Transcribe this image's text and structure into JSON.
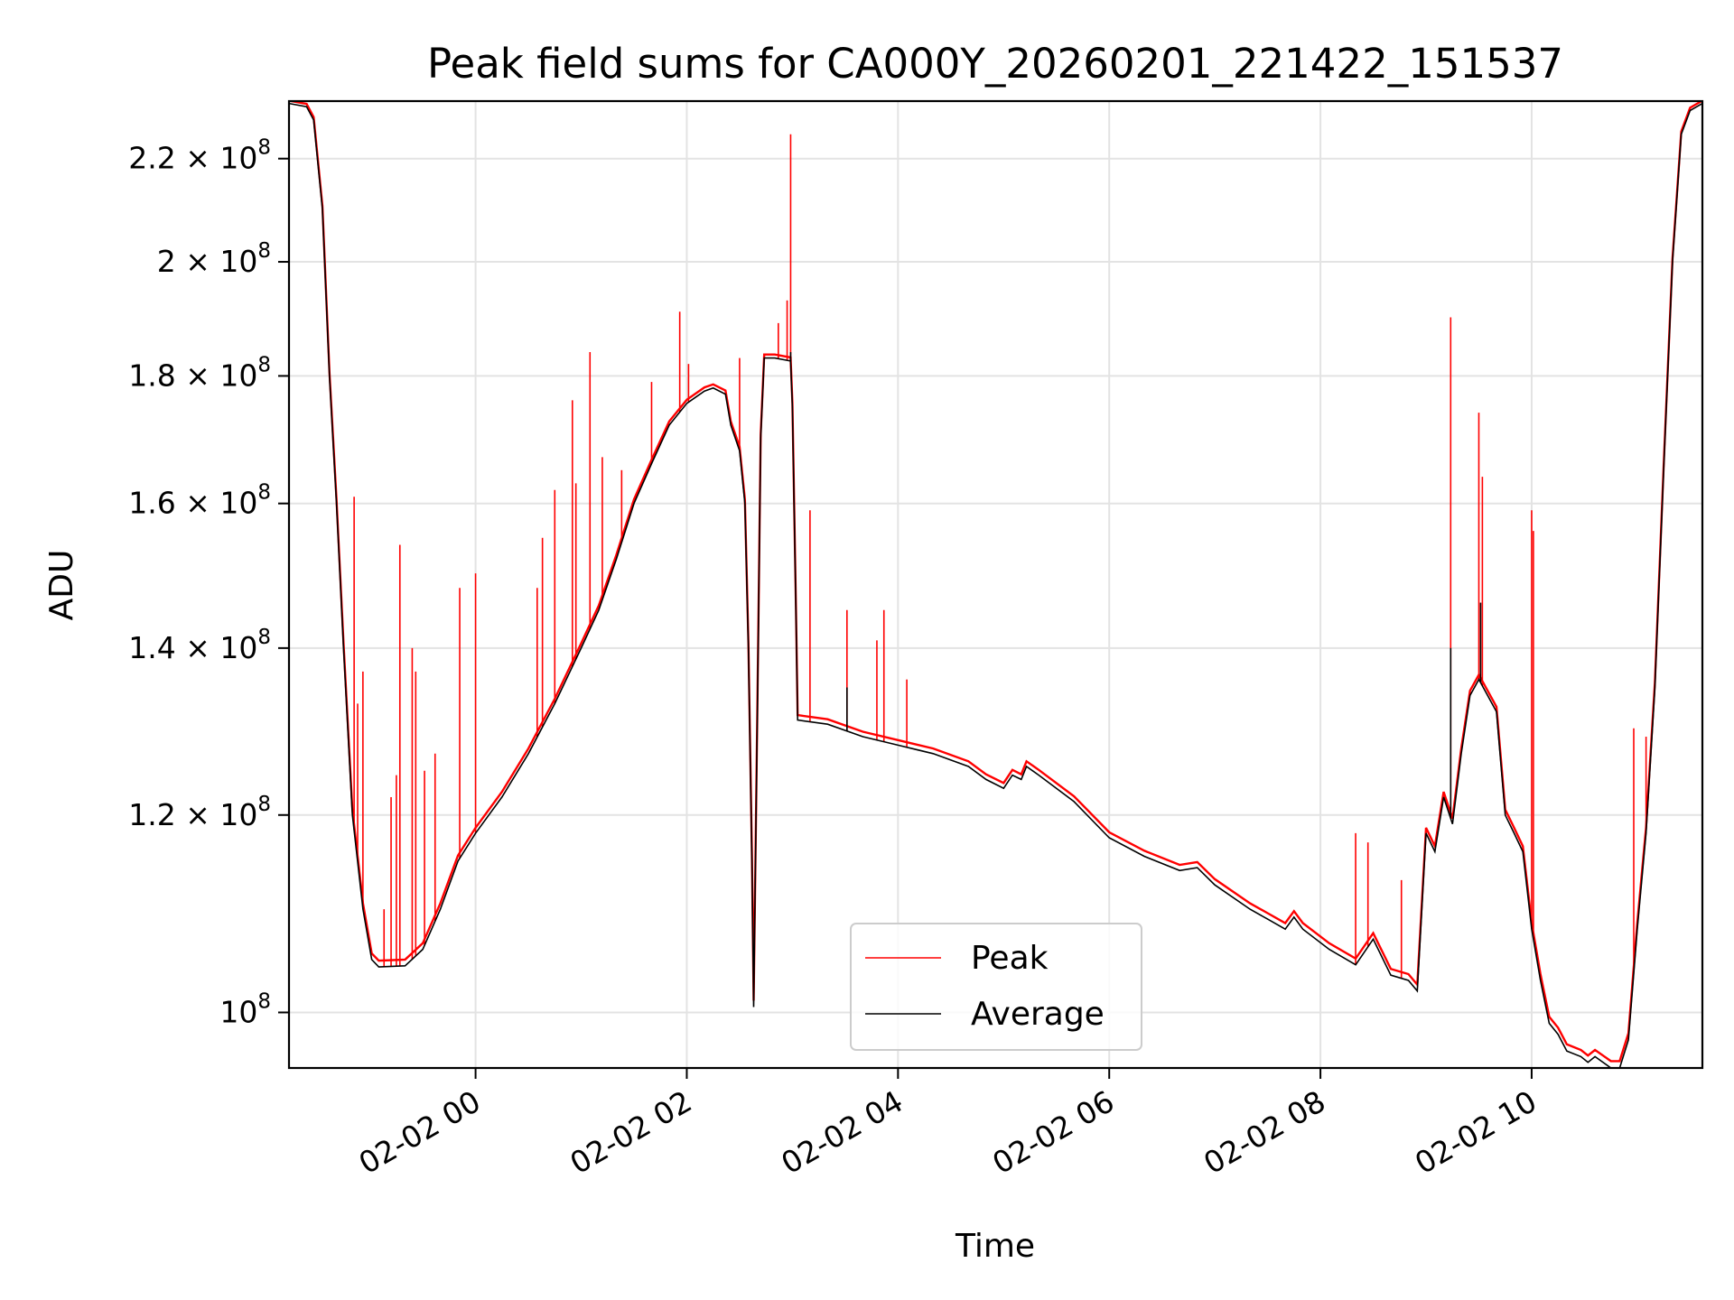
{
  "chart_data": {
    "type": "line",
    "title": "Peak field sums for CA000Y_20260201_221422_151537",
    "xlabel": "Time",
    "ylabel": "ADU",
    "yscale": "log",
    "ylim": [
      95000000,
      232000000
    ],
    "xlim": [
      "2026-02-01 22:14",
      "2026-02-02 11:37"
    ],
    "grid": true,
    "legend": "lower center",
    "x_ticks": [
      "02-02 00",
      "02-02 02",
      "02-02 04",
      "02-02 06",
      "02-02 08",
      "02-02 10"
    ],
    "x_tick_values": [
      "2026-02-02 00:00",
      "2026-02-02 02:00",
      "2026-02-02 04:00",
      "2026-02-02 06:00",
      "2026-02-02 08:00",
      "2026-02-02 10:00"
    ],
    "y_ticks": [
      {
        "value": 100000000,
        "mant": "",
        "exp": "8"
      },
      {
        "value": 120000000,
        "mant": "1.2",
        "exp": "8"
      },
      {
        "value": 140000000,
        "mant": "1.4",
        "exp": "8"
      },
      {
        "value": 160000000,
        "mant": "1.6",
        "exp": "8"
      },
      {
        "value": 180000000,
        "mant": "1.8",
        "exp": "8"
      },
      {
        "value": 200000000,
        "mant": "2",
        "exp": "8"
      },
      {
        "value": 220000000,
        "mant": "2.2",
        "exp": "8"
      }
    ],
    "series": [
      {
        "name": "Peak",
        "color": "#ff0000"
      },
      {
        "name": "Average",
        "color": "#000000"
      }
    ],
    "average_points": [
      [
        "2026-02-01 22:14",
        231.5
      ],
      [
        "2026-02-01 22:24",
        230.8
      ],
      [
        "2026-02-01 22:28",
        228.0
      ],
      [
        "2026-02-01 22:33",
        210.0
      ],
      [
        "2026-02-01 22:37",
        180.0
      ],
      [
        "2026-02-01 22:41",
        160.0
      ],
      [
        "2026-02-01 22:45",
        140.0
      ],
      [
        "2026-02-01 22:50",
        120.0
      ],
      [
        "2026-02-01 22:56",
        110.0
      ],
      [
        "2026-02-01 23:01",
        105.0
      ],
      [
        "2026-02-01 23:05",
        104.3
      ],
      [
        "2026-02-01 23:20",
        104.4
      ],
      [
        "2026-02-01 23:30",
        106.0
      ],
      [
        "2026-02-01 23:40",
        110.0
      ],
      [
        "2026-02-01 23:50",
        115.0
      ],
      [
        "2026-02-02 00:00",
        118.0
      ],
      [
        "2026-02-02 00:15",
        122.0
      ],
      [
        "2026-02-02 00:30",
        127.0
      ],
      [
        "2026-02-02 00:45",
        133.0
      ],
      [
        "2026-02-02 01:00",
        140.0
      ],
      [
        "2026-02-02 01:10",
        145.0
      ],
      [
        "2026-02-02 01:20",
        152.0
      ],
      [
        "2026-02-02 01:30",
        160.0
      ],
      [
        "2026-02-02 01:40",
        166.0
      ],
      [
        "2026-02-02 01:50",
        172.0
      ],
      [
        "2026-02-02 02:00",
        175.5
      ],
      [
        "2026-02-02 02:10",
        177.5
      ],
      [
        "2026-02-02 02:15",
        178.0
      ],
      [
        "2026-02-02 02:22",
        177.0
      ],
      [
        "2026-02-02 02:25",
        172.0
      ],
      [
        "2026-02-02 02:30",
        168.0
      ],
      [
        "2026-02-02 02:33",
        160.0
      ],
      [
        "2026-02-02 02:35",
        140.0
      ],
      [
        "2026-02-02 02:37",
        115.0
      ],
      [
        "2026-02-02 02:38",
        100.5
      ],
      [
        "2026-02-02 02:40",
        130.0
      ],
      [
        "2026-02-02 02:42",
        170.0
      ],
      [
        "2026-02-02 02:44",
        183.0
      ],
      [
        "2026-02-02 02:50",
        183.0
      ],
      [
        "2026-02-02 02:59",
        182.5
      ],
      [
        "2026-02-02 03:00",
        175.0
      ],
      [
        "2026-02-02 03:02",
        145.0
      ],
      [
        "2026-02-02 03:03",
        131.0
      ],
      [
        "2026-02-02 03:20",
        130.5
      ],
      [
        "2026-02-02 03:40",
        129.0
      ],
      [
        "2026-02-02 04:00",
        128.0
      ],
      [
        "2026-02-02 04:20",
        127.0
      ],
      [
        "2026-02-02 04:40",
        125.5
      ],
      [
        "2026-02-02 04:50",
        124.0
      ],
      [
        "2026-02-02 05:00",
        123.0
      ],
      [
        "2026-02-02 05:05",
        124.5
      ],
      [
        "2026-02-02 05:10",
        124.0
      ],
      [
        "2026-02-02 05:13",
        125.5
      ],
      [
        "2026-02-02 05:20",
        124.5
      ],
      [
        "2026-02-02 05:40",
        121.5
      ],
      [
        "2026-02-02 06:00",
        117.5
      ],
      [
        "2026-02-02 06:20",
        115.5
      ],
      [
        "2026-02-02 06:40",
        114.0
      ],
      [
        "2026-02-02 06:50",
        114.3
      ],
      [
        "2026-02-02 07:00",
        112.5
      ],
      [
        "2026-02-02 07:20",
        110.0
      ],
      [
        "2026-02-02 07:30",
        109.0
      ],
      [
        "2026-02-02 07:40",
        108.0
      ],
      [
        "2026-02-02 07:45",
        109.2
      ],
      [
        "2026-02-02 07:50",
        108.0
      ],
      [
        "2026-02-02 08:05",
        106.0
      ],
      [
        "2026-02-02 08:20",
        104.5
      ],
      [
        "2026-02-02 08:30",
        107.0
      ],
      [
        "2026-02-02 08:40",
        103.5
      ],
      [
        "2026-02-02 08:50",
        103.0
      ],
      [
        "2026-02-02 08:55",
        102.0
      ],
      [
        "2026-02-02 09:00",
        118.0
      ],
      [
        "2026-02-02 09:05",
        116.0
      ],
      [
        "2026-02-02 09:10",
        122.0
      ],
      [
        "2026-02-02 09:15",
        119.0
      ],
      [
        "2026-02-02 09:20",
        127.0
      ],
      [
        "2026-02-02 09:25",
        134.0
      ],
      [
        "2026-02-02 09:30",
        136.0
      ],
      [
        "2026-02-02 09:35",
        134.0
      ],
      [
        "2026-02-02 09:40",
        132.0
      ],
      [
        "2026-02-02 09:45",
        120.0
      ],
      [
        "2026-02-02 09:50",
        118.0
      ],
      [
        "2026-02-02 09:55",
        116.0
      ],
      [
        "2026-02-02 10:00",
        108.0
      ],
      [
        "2026-02-02 10:05",
        103.0
      ],
      [
        "2026-02-02 10:10",
        99.0
      ],
      [
        "2026-02-02 10:15",
        98.0
      ],
      [
        "2026-02-02 10:20",
        96.5
      ],
      [
        "2026-02-02 10:28",
        96.0
      ],
      [
        "2026-02-02 10:32",
        95.5
      ],
      [
        "2026-02-02 10:36",
        96.0
      ],
      [
        "2026-02-02 10:45",
        95.0
      ],
      [
        "2026-02-02 10:50",
        95.0
      ],
      [
        "2026-02-02 10:55",
        97.5
      ],
      [
        "2026-02-02 11:00",
        108.0
      ],
      [
        "2026-02-02 11:05",
        118.0
      ],
      [
        "2026-02-02 11:10",
        135.0
      ],
      [
        "2026-02-02 11:15",
        165.0
      ],
      [
        "2026-02-02 11:20",
        200.0
      ],
      [
        "2026-02-02 11:25",
        225.0
      ],
      [
        "2026-02-02 11:30",
        230.0
      ],
      [
        "2026-02-02 11:37",
        231.5
      ]
    ],
    "peak_offset": 0.6,
    "peak_spikes": [
      [
        "2026-02-01 22:51",
        161.0
      ],
      [
        "2026-02-01 22:53",
        133.0
      ],
      [
        "2026-02-01 22:56",
        137.0
      ],
      [
        "2026-02-01 23:08",
        110.0
      ],
      [
        "2026-02-01 23:12",
        122.0
      ],
      [
        "2026-02-01 23:15",
        124.5
      ],
      [
        "2026-02-01 23:17",
        154.0
      ],
      [
        "2026-02-01 23:24",
        140.0
      ],
      [
        "2026-02-01 23:26",
        137.0
      ],
      [
        "2026-02-01 23:31",
        125.0
      ],
      [
        "2026-02-01 23:37",
        127.0
      ],
      [
        "2026-02-01 23:51",
        148.0
      ],
      [
        "2026-02-02 00:00",
        150.0
      ],
      [
        "2026-02-02 00:35",
        148.0
      ],
      [
        "2026-02-02 00:38",
        155.0
      ],
      [
        "2026-02-02 00:45",
        162.0
      ],
      [
        "2026-02-02 00:55",
        176.0
      ],
      [
        "2026-02-02 00:57",
        163.0
      ],
      [
        "2026-02-02 01:05",
        184.0
      ],
      [
        "2026-02-02 01:12",
        167.0
      ],
      [
        "2026-02-02 01:23",
        165.0
      ],
      [
        "2026-02-02 01:40",
        179.0
      ],
      [
        "2026-02-02 01:56",
        191.0
      ],
      [
        "2026-02-02 02:01",
        182.0
      ],
      [
        "2026-02-02 02:30",
        183.0
      ],
      [
        "2026-02-02 02:52",
        189.0
      ],
      [
        "2026-02-02 02:57",
        193.0
      ],
      [
        "2026-02-02 02:59",
        225.0
      ],
      [
        "2026-02-02 03:10",
        159.0
      ],
      [
        "2026-02-02 03:31",
        145.0
      ],
      [
        "2026-02-02 03:48",
        141.0
      ],
      [
        "2026-02-02 03:52",
        145.0
      ],
      [
        "2026-02-02 04:05",
        136.0
      ],
      [
        "2026-02-02 08:20",
        118.0
      ],
      [
        "2026-02-02 08:27",
        117.0
      ],
      [
        "2026-02-02 08:46",
        113.0
      ],
      [
        "2026-02-02 09:14",
        190.0
      ],
      [
        "2026-02-02 09:30",
        174.0
      ],
      [
        "2026-02-02 09:32",
        164.0
      ],
      [
        "2026-02-02 10:00",
        159.0
      ],
      [
        "2026-02-02 10:01",
        156.0
      ],
      [
        "2026-02-02 10:58",
        130.0
      ],
      [
        "2026-02-02 11:05",
        129.0
      ]
    ],
    "average_spikes": [
      [
        "2026-02-02 09:14",
        140.0
      ],
      [
        "2026-02-02 09:31",
        146.0
      ],
      [
        "2026-02-02 03:31",
        135.0
      ],
      [
        "2026-02-02 02:59",
        184.0
      ]
    ]
  }
}
